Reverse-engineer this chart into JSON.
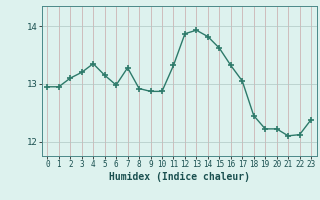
{
  "x": [
    0,
    1,
    2,
    3,
    4,
    5,
    6,
    7,
    8,
    9,
    10,
    11,
    12,
    13,
    14,
    15,
    16,
    17,
    18,
    19,
    20,
    21,
    22,
    23
  ],
  "y": [
    12.95,
    12.95,
    13.1,
    13.2,
    13.35,
    13.15,
    12.98,
    13.28,
    12.92,
    12.87,
    12.87,
    13.32,
    13.87,
    13.93,
    13.82,
    13.62,
    13.32,
    13.05,
    12.45,
    12.22,
    12.22,
    12.1,
    12.12,
    12.38
  ],
  "line_color": "#2d7a6a",
  "marker_color": "#2d7a6a",
  "bg_color": "#ddf2ee",
  "grid_color_v": "#c8a8a8",
  "grid_color_h": "#b0c8c4",
  "xlabel": "Humidex (Indice chaleur)",
  "ylim": [
    11.75,
    14.35
  ],
  "yticks": [
    12,
    13,
    14
  ],
  "xticks": [
    0,
    1,
    2,
    3,
    4,
    5,
    6,
    7,
    8,
    9,
    10,
    11,
    12,
    13,
    14,
    15,
    16,
    17,
    18,
    19,
    20,
    21,
    22,
    23
  ]
}
